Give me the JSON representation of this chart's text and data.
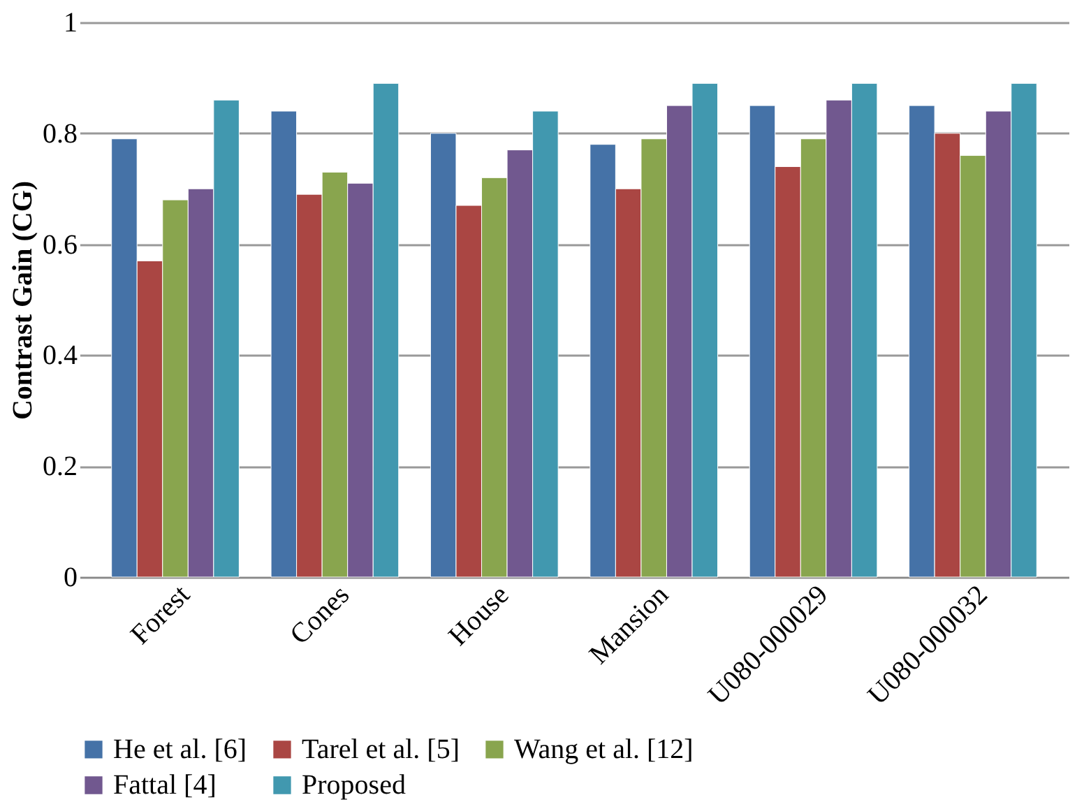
{
  "chart_data": {
    "type": "bar",
    "ylabel": "Contrast Gain (CG)",
    "categories": [
      "Forest",
      "Cones",
      "House",
      "Mansion",
      "U080-000029",
      "U080-000032"
    ],
    "series": [
      {
        "name": "He et al. [6]",
        "color": "#4572a7",
        "values": [
          0.79,
          0.84,
          0.8,
          0.78,
          0.85,
          0.85
        ]
      },
      {
        "name": "Tarel et al. [5]",
        "color": "#aa4643",
        "values": [
          0.57,
          0.69,
          0.67,
          0.7,
          0.74,
          0.8
        ]
      },
      {
        "name": "Wang et al. [12]",
        "color": "#89a54e",
        "values": [
          0.68,
          0.73,
          0.72,
          0.79,
          0.79,
          0.76
        ]
      },
      {
        "name": "Fattal [4]",
        "color": "#71588f",
        "values": [
          0.7,
          0.71,
          0.77,
          0.85,
          0.86,
          0.84
        ]
      },
      {
        "name": "Proposed",
        "color": "#4198af",
        "values": [
          0.86,
          0.89,
          0.84,
          0.89,
          0.89,
          0.89
        ]
      }
    ],
    "ylim": [
      0,
      1
    ],
    "yticks": [
      0,
      0.2,
      0.4,
      0.6,
      0.8,
      1
    ],
    "grid": "y",
    "legend": "bottom"
  }
}
